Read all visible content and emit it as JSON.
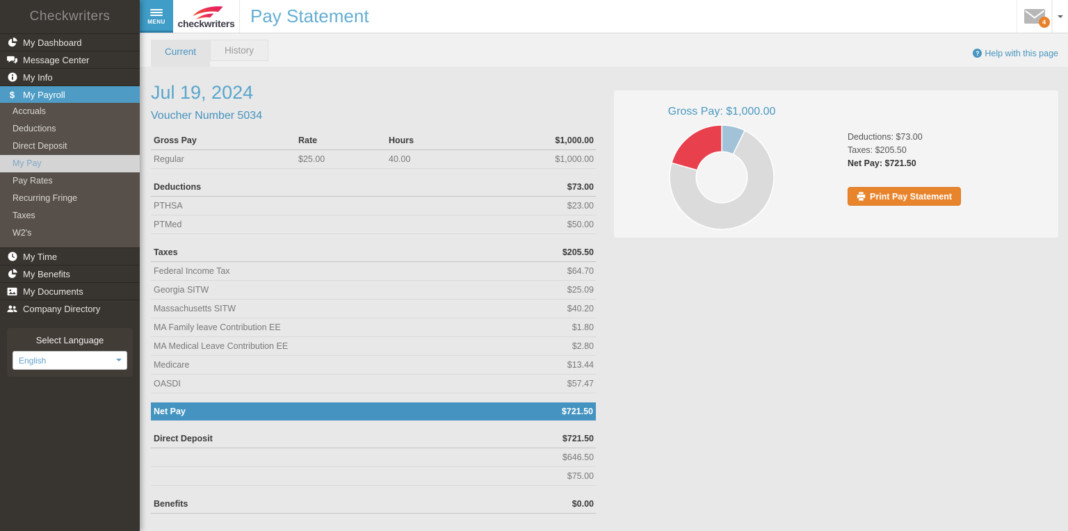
{
  "header": {
    "menu_label": "MENU",
    "logo_text": "checkwriters",
    "page_title": "Pay Statement",
    "mail_badge": "4"
  },
  "sidebar": {
    "title": "Checkwriters",
    "items": [
      {
        "label": "My Dashboard",
        "icon": "dashboard-icon"
      },
      {
        "label": "Message Center",
        "icon": "chat-icon"
      },
      {
        "label": "My Info",
        "icon": "info-icon"
      },
      {
        "label": "My Payroll",
        "icon": "dollar-icon",
        "active": true,
        "children": [
          "Accruals",
          "Deductions",
          "Direct Deposit",
          "My Pay",
          "Pay Rates",
          "Recurring Fringe",
          "Taxes",
          "W2's"
        ],
        "active_child": "My Pay"
      },
      {
        "label": "My Time",
        "icon": "clock-icon"
      },
      {
        "label": "My Benefits",
        "icon": "pie-icon"
      },
      {
        "label": "My Documents",
        "icon": "image-icon"
      },
      {
        "label": "Company Directory",
        "icon": "users-icon"
      }
    ],
    "language": {
      "label": "Select Language",
      "selected": "English"
    }
  },
  "tabs": [
    {
      "label": "Current",
      "active": true
    },
    {
      "label": "History",
      "active": false
    }
  ],
  "help_link": "Help with this page",
  "statement": {
    "date": "Jul 19, 2024",
    "voucher": "Voucher Number 5034",
    "sections": [
      {
        "name": "gross-pay",
        "header": {
          "label": "Gross Pay",
          "rate": "Rate",
          "hours": "Hours",
          "amount": "$1,000.00"
        },
        "rows": [
          {
            "label": "Regular",
            "rate": "$25.00",
            "hours": "40.00",
            "amount": "$1,000.00"
          }
        ]
      },
      {
        "name": "deductions",
        "header": {
          "label": "Deductions",
          "amount": "$73.00"
        },
        "rows": [
          {
            "label": "PTHSA",
            "amount": "$23.00"
          },
          {
            "label": "PTMed",
            "amount": "$50.00"
          }
        ]
      },
      {
        "name": "taxes",
        "header": {
          "label": "Taxes",
          "amount": "$205.50"
        },
        "rows": [
          {
            "label": "Federal Income Tax",
            "amount": "$64.70"
          },
          {
            "label": "Georgia SITW",
            "amount": "$25.09"
          },
          {
            "label": "Massachusetts SITW",
            "amount": "$40.20"
          },
          {
            "label": "MA Family leave Contribution EE",
            "amount": "$1.80"
          },
          {
            "label": "MA Medical Leave Contribution EE",
            "amount": "$2.80"
          },
          {
            "label": "Medicare",
            "amount": "$13.44"
          },
          {
            "label": "OASDI",
            "amount": "$57.47"
          }
        ]
      },
      {
        "name": "net-pay",
        "type": "netpay",
        "header": {
          "label": "Net Pay",
          "amount": "$721.50"
        },
        "rows": []
      },
      {
        "name": "direct-deposit",
        "header": {
          "label": "Direct Deposit",
          "amount": "$721.50"
        },
        "rows": [
          {
            "label": "",
            "amount": "$646.50"
          },
          {
            "label": "",
            "amount": "$75.00"
          }
        ]
      },
      {
        "name": "benefits",
        "header": {
          "label": "Benefits",
          "amount": "$0.00"
        },
        "rows": []
      }
    ]
  },
  "summary_panel": {
    "title": "Gross Pay: $1,000.00",
    "legend": [
      "Deductions: $73.00",
      "Taxes: $205.50",
      "Net Pay: $721.50"
    ],
    "print_button": "Print Pay Statement"
  },
  "chart_data": {
    "type": "pie",
    "donut": true,
    "title": "Gross Pay: $1,000.00",
    "total": 1000.0,
    "slices": [
      {
        "label": "Deductions",
        "value": 73.0,
        "color": "#a2c2d8"
      },
      {
        "label": "Net Pay",
        "value": 721.5,
        "color": "#dbdbdb"
      },
      {
        "label": "Taxes",
        "value": 205.5,
        "color": "#e9404e"
      }
    ],
    "start_angle_deg": 0,
    "direction": "clockwise",
    "inner_radius_ratio": 0.49,
    "legend_position": "right",
    "colors": {
      "accent_blue": "#4493c0",
      "accent_orange": "#e8842c"
    }
  }
}
